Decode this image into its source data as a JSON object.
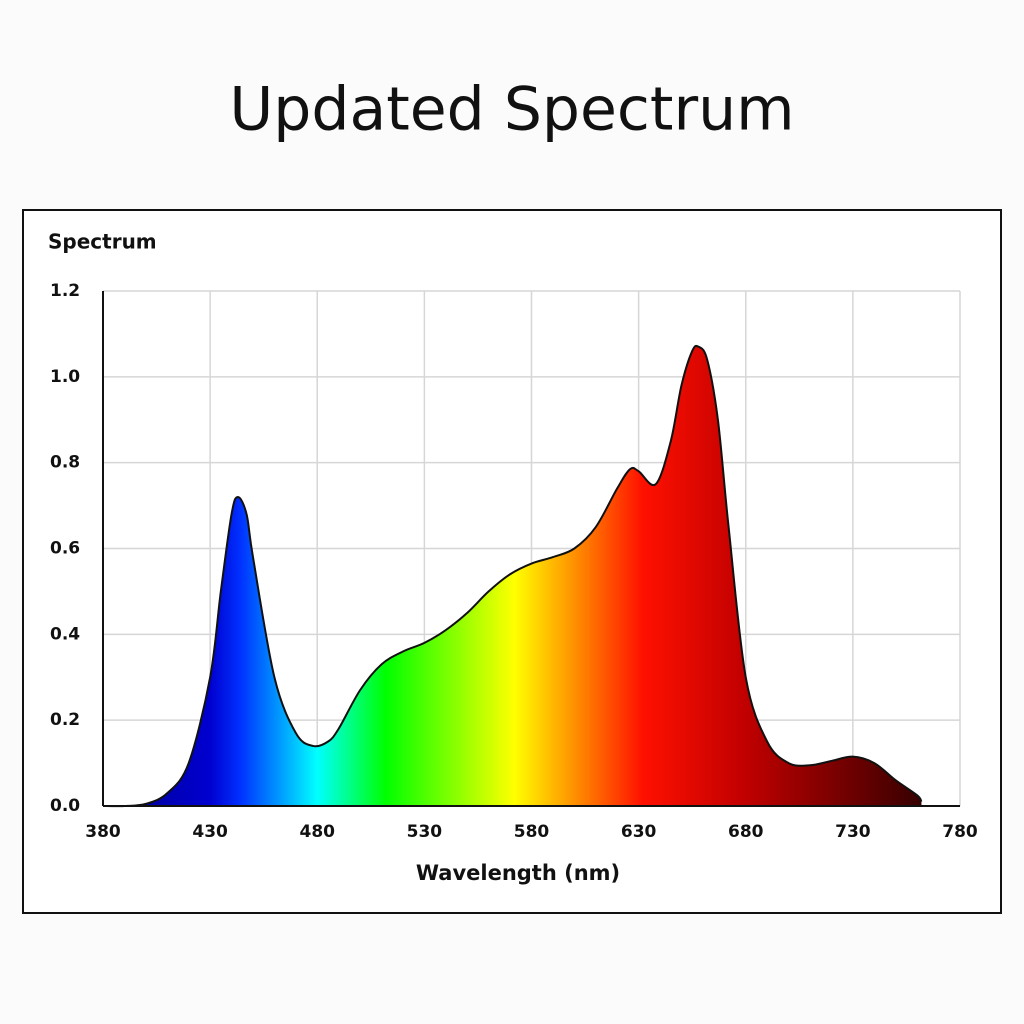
{
  "chart_data": {
    "type": "area",
    "title": "Updated Spectrum",
    "ylabel": "Spectrum",
    "xlabel": "Wavelength (nm)",
    "x": [
      380,
      390,
      400,
      410,
      420,
      430,
      435,
      440,
      443,
      447,
      450,
      460,
      470,
      478,
      485,
      490,
      500,
      510,
      520,
      530,
      540,
      550,
      560,
      570,
      580,
      590,
      600,
      610,
      620,
      626,
      630,
      638,
      645,
      650,
      655,
      658,
      662,
      667,
      672,
      680,
      690,
      700,
      710,
      720,
      730,
      740,
      750,
      760,
      762
    ],
    "values": [
      0,
      0,
      0.005,
      0.03,
      0.1,
      0.3,
      0.5,
      0.68,
      0.72,
      0.68,
      0.58,
      0.3,
      0.17,
      0.14,
      0.15,
      0.18,
      0.27,
      0.33,
      0.36,
      0.38,
      0.41,
      0.45,
      0.5,
      0.54,
      0.565,
      0.58,
      0.6,
      0.65,
      0.74,
      0.785,
      0.78,
      0.75,
      0.85,
      0.98,
      1.06,
      1.07,
      1.04,
      0.9,
      0.65,
      0.3,
      0.15,
      0.1,
      0.095,
      0.105,
      0.115,
      0.1,
      0.06,
      0.025,
      0.01
    ],
    "xlim": [
      380,
      780
    ],
    "xticks": [
      380,
      430,
      480,
      530,
      580,
      630,
      680,
      730,
      780
    ],
    "ylim": [
      0,
      1.2
    ],
    "yticks": [
      {
        "value": 0,
        "label": "0.0"
      },
      0.2,
      0.4,
      0.6,
      0.8,
      {
        "value": 1,
        "label": "1.0"
      },
      1.2
    ],
    "grid": true
  }
}
